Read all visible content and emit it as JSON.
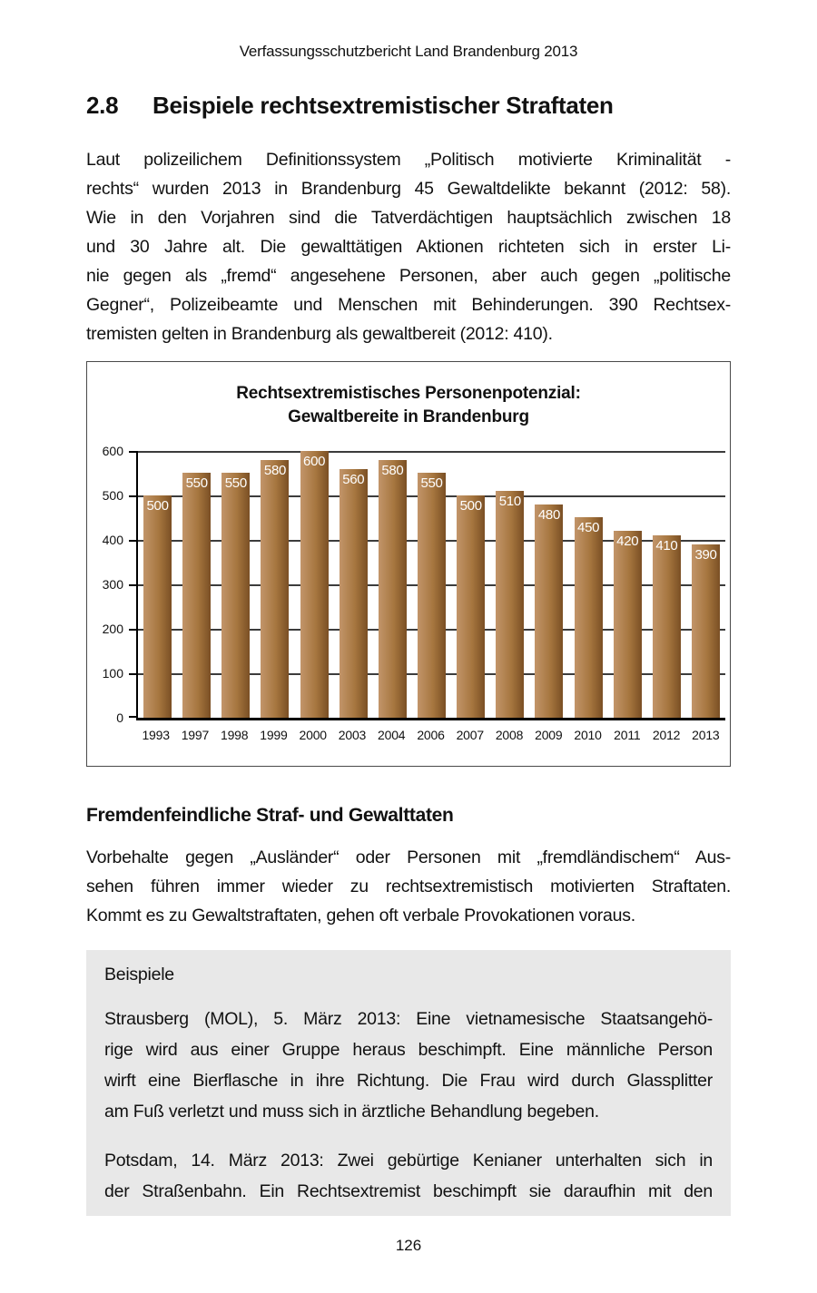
{
  "header": {
    "title": "Verfassungsschutzbericht Land Brandenburg 2013"
  },
  "section": {
    "number": "2.8",
    "title": "Beispiele rechtsextremistischer Straftaten"
  },
  "intro": {
    "lines": [
      "Laut polizeilichem Definitionssystem „Politisch motivierte Kriminalität -",
      "rechts“ wurden 2013 in Brandenburg 45 Gewaltdelikte bekannt (2012: 58).",
      "Wie in den Vorjahren sind die Tatverdächtigen hauptsächlich zwischen 18",
      "und 30 Jahre alt. Die gewalttätigen Aktionen richteten sich in erster Li-",
      "nie gegen als „fremd“ angesehene Personen, aber auch gegen „politische",
      "Gegner“, Polizeibeamte und Menschen mit Behinderungen. 390 Rechtsex-",
      "tremisten gelten in Brandenburg als gewaltbereit (2012: 410)."
    ]
  },
  "chart": {
    "title_line1": "Rechtsextremistisches Personenpotenzial:",
    "title_line2": "Gewaltbereite in Brandenburg"
  },
  "chart_data": {
    "type": "bar",
    "title": "Rechtsextremistisches Personenpotenzial: Gewaltbereite in Brandenburg",
    "categories": [
      "1993",
      "1997",
      "1998",
      "1999",
      "2000",
      "2003",
      "2004",
      "2006",
      "2007",
      "2008",
      "2009",
      "2010",
      "2011",
      "2012",
      "2013"
    ],
    "values": [
      500,
      550,
      550,
      580,
      600,
      560,
      580,
      550,
      500,
      510,
      480,
      450,
      420,
      410,
      390
    ],
    "xlabel": "",
    "ylabel": "",
    "ylim": [
      0,
      600
    ],
    "yticks": [
      0,
      100,
      200,
      300,
      400,
      500,
      600
    ],
    "grid": true,
    "legend": "none",
    "data_labels": "inside-top",
    "data_label_color": "#ffffff",
    "bar_gradient": [
      "#c2956a",
      "#a6763f",
      "#7a4f24"
    ],
    "gridline_color": "#3c3c3c",
    "axis_color": "#000000"
  },
  "subsection": {
    "title": "Fremdenfeindliche Straf- und Gewalttaten",
    "lines": [
      "Vorbehalte gegen „Ausländer“ oder Personen mit „fremdländischem“ Aus-",
      "sehen führen immer wieder zu rechtsextremistisch motivierten Straftaten.",
      "Kommt es zu Gewaltstraftaten, gehen oft verbale Provokationen voraus."
    ]
  },
  "examples_box": {
    "title": "Beispiele",
    "background": "#e8e8e8",
    "paragraphs": [
      {
        "lines": [
          "Strausberg (MOL), 5. März 2013: Eine vietnamesische Staatsangehö-",
          "rige wird aus einer Gruppe heraus beschimpft. Eine männliche Person",
          "wirft eine Bierflasche in ihre Richtung. Die Frau wird durch Glassplitter",
          "am Fuß verletzt und muss sich in ärztliche Behandlung begeben."
        ],
        "continues": false
      },
      {
        "lines": [
          "Potsdam, 14. März 2013: Zwei gebürtige Kenianer unterhalten sich in",
          "der Straßenbahn. Ein Rechtsextremist beschimpft sie daraufhin mit den"
        ],
        "continues": true
      }
    ]
  },
  "footer": {
    "page_number": "126"
  }
}
